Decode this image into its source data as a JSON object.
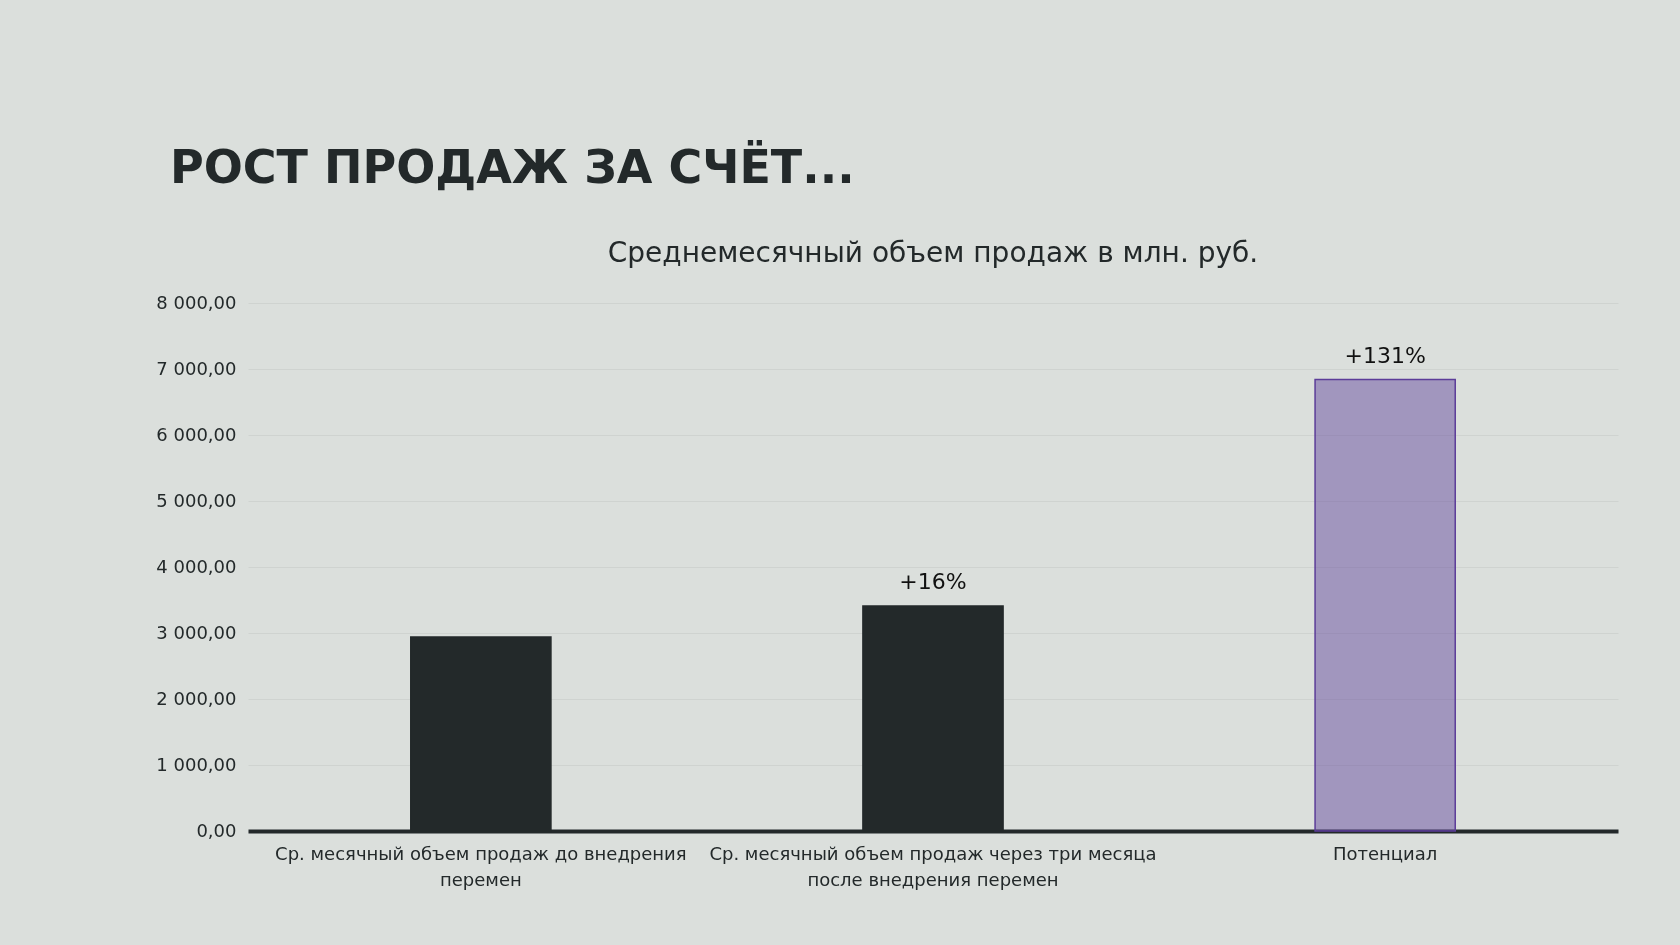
{
  "chart_data": {
    "type": "bar",
    "title": "РОСТ ПРОДАЖ ЗА СЧЁТ...",
    "subtitle": "Среднемесячный объем продаж в млн. руб.",
    "categories": [
      "Ср. месячный объем продаж до внедрения перемен",
      "Ср. месячный объем продаж через три месяца после внедрения перемен",
      "Потенциал"
    ],
    "values": [
      2940,
      3410,
      6840
    ],
    "colors": [
      "#23292a",
      "#23292a",
      "#5c3d99"
    ],
    "ylim": [
      0,
      8000
    ],
    "yticks": [
      {
        "value": 0,
        "label": "0,00"
      },
      {
        "value": 1000,
        "label": "1 000,00"
      },
      {
        "value": 2000,
        "label": "2 000,00"
      },
      {
        "value": 3000,
        "label": "3 000,00"
      },
      {
        "value": 4000,
        "label": "4 000,00"
      },
      {
        "value": 5000,
        "label": "5 000,00"
      },
      {
        "value": 6000,
        "label": "6 000,00"
      },
      {
        "value": 7000,
        "label": "7 000,00"
      },
      {
        "value": 8000,
        "label": "8 000,00"
      }
    ],
    "grid": "y",
    "annotations": [
      {
        "text": "+16%",
        "x": "Ср. месячный объем продаж через три месяца после внедрения перемен",
        "y": 3410
      },
      {
        "text": "+131%",
        "x": "Потенциал",
        "y": 6840
      }
    ]
  }
}
